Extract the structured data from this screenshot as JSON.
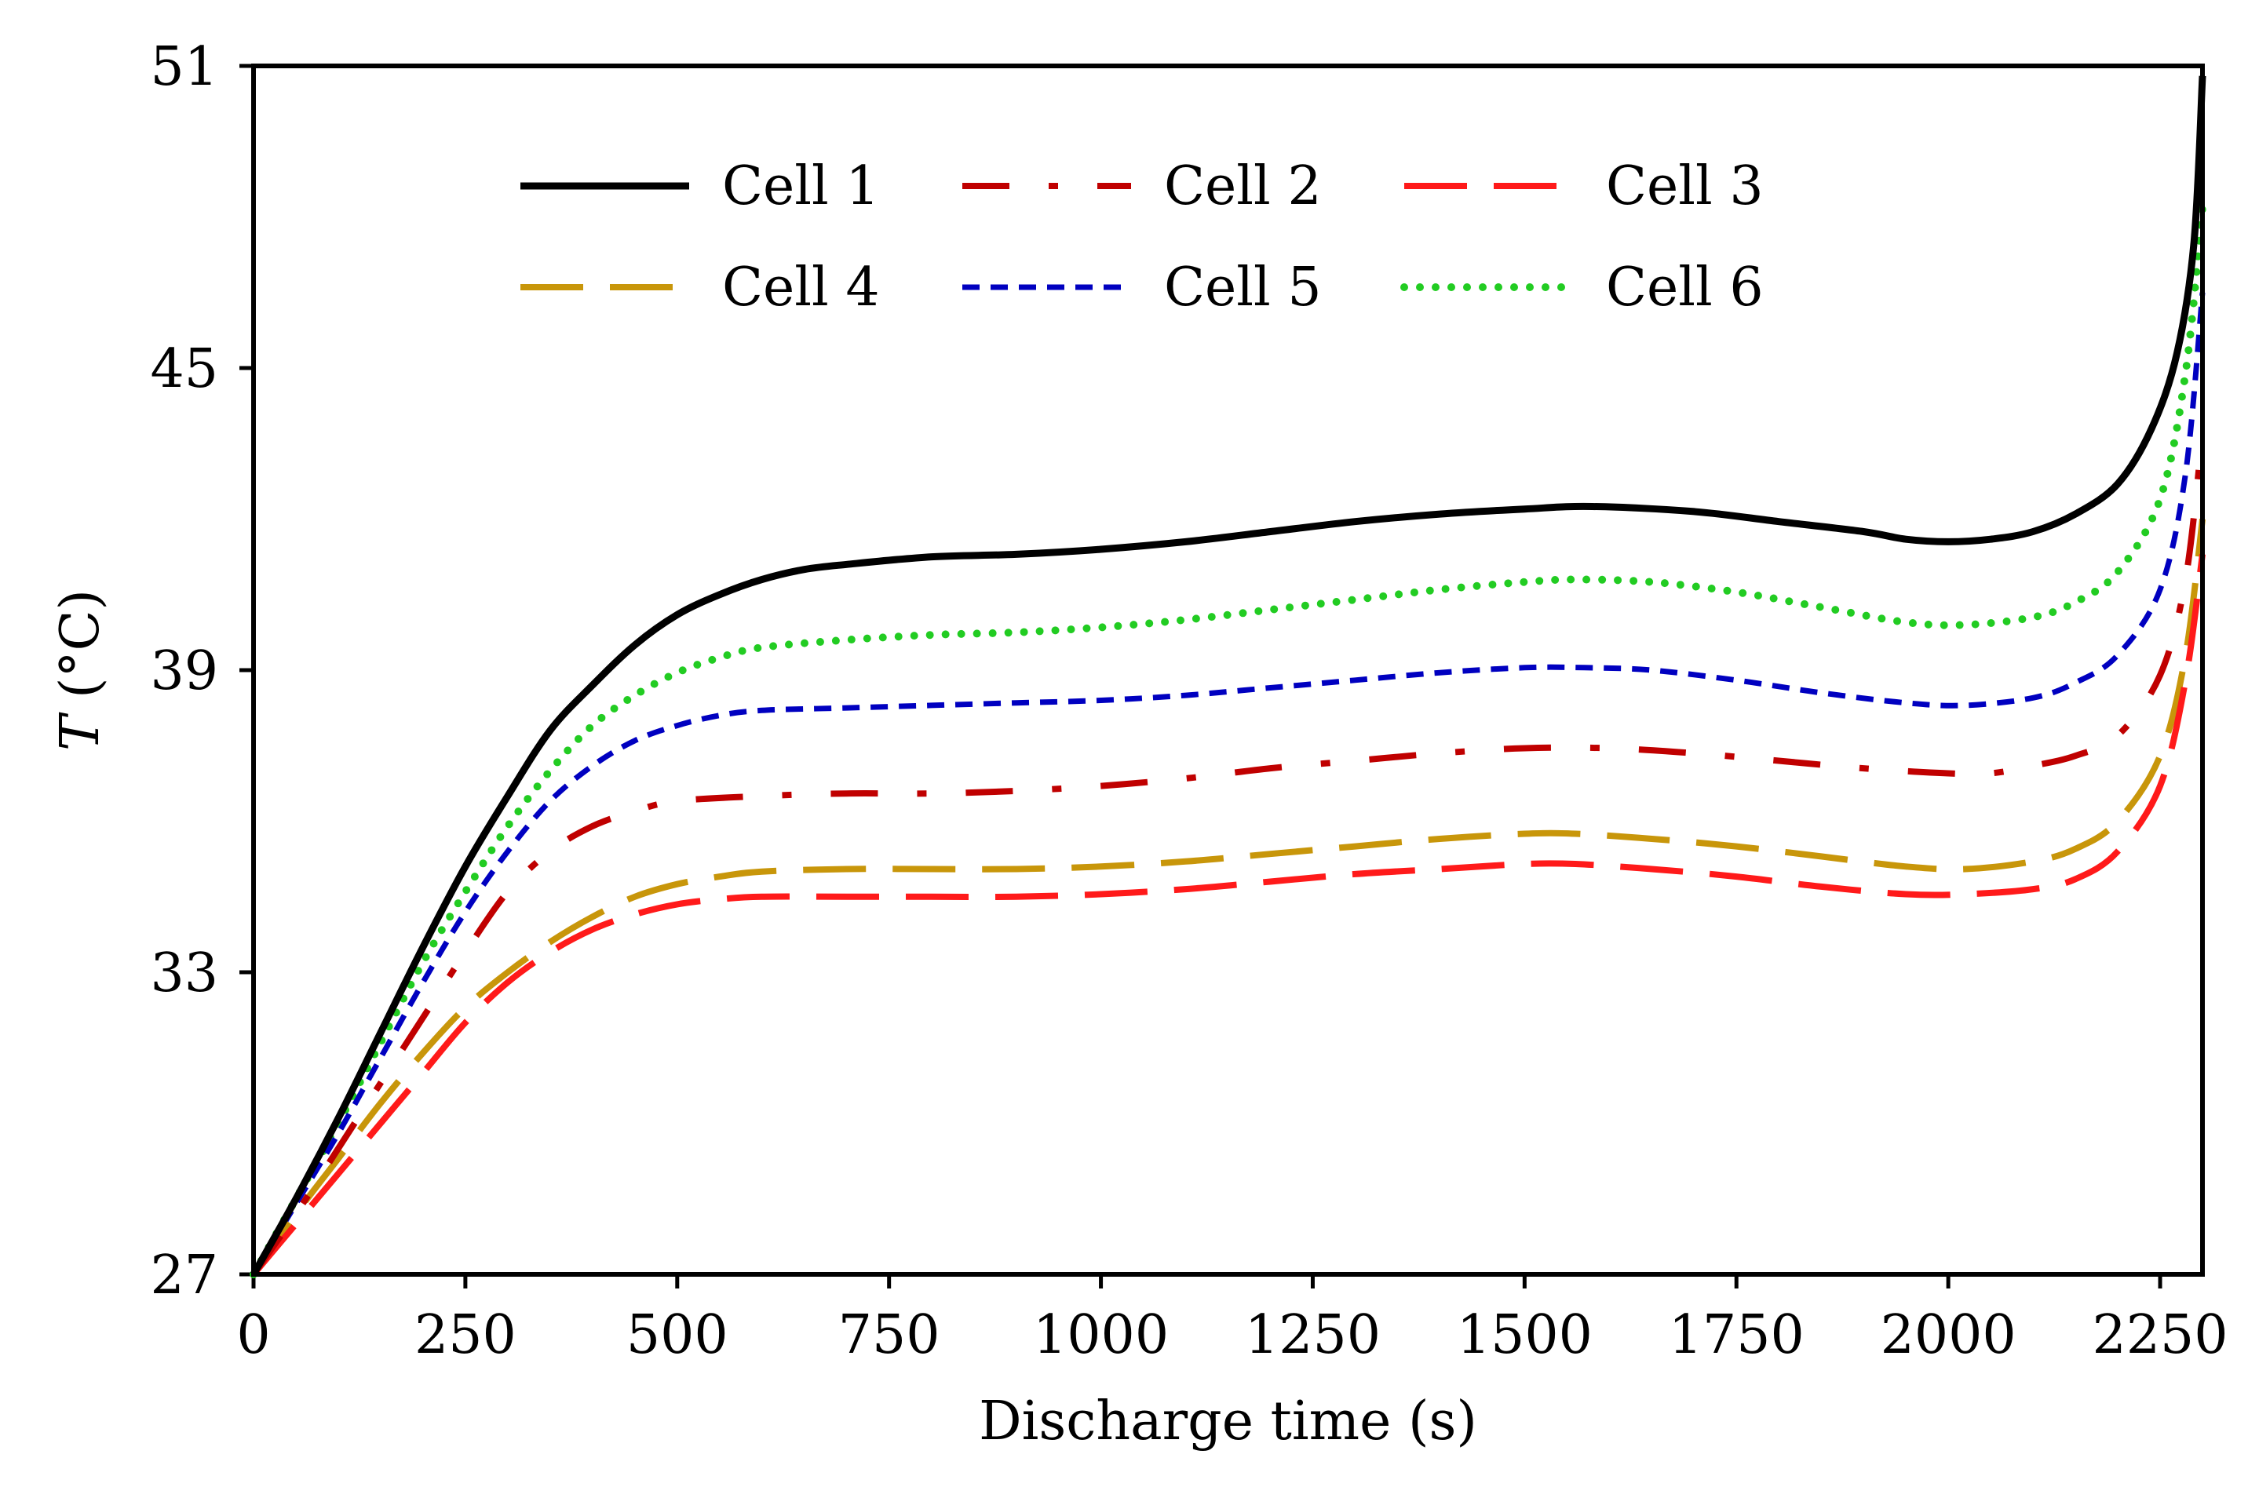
{
  "chart_data": {
    "type": "line",
    "title": "",
    "xlabel": "Discharge time (s)",
    "ylabel_italic": "T",
    "ylabel_unit": " (°C)",
    "xlim": [
      0,
      2300
    ],
    "ylim": [
      27,
      51
    ],
    "xticks": [
      0,
      250,
      500,
      750,
      1000,
      1250,
      1500,
      1750,
      2000,
      2250
    ],
    "yticks": [
      27,
      33,
      39,
      45,
      51
    ],
    "legend_position": "top-left",
    "series": [
      {
        "name": "Cell 1",
        "color": "#000000",
        "style": "solid",
        "points": [
          [
            0,
            27
          ],
          [
            50,
            28.5
          ],
          [
            100,
            30.1
          ],
          [
            150,
            31.8
          ],
          [
            200,
            33.5
          ],
          [
            250,
            35.1
          ],
          [
            300,
            36.5
          ],
          [
            350,
            37.8
          ],
          [
            400,
            38.7
          ],
          [
            450,
            39.5
          ],
          [
            500,
            40.1
          ],
          [
            550,
            40.5
          ],
          [
            600,
            40.8
          ],
          [
            650,
            41.0
          ],
          [
            700,
            41.1
          ],
          [
            800,
            41.25
          ],
          [
            900,
            41.3
          ],
          [
            1000,
            41.4
          ],
          [
            1100,
            41.55
          ],
          [
            1200,
            41.75
          ],
          [
            1300,
            41.95
          ],
          [
            1400,
            42.1
          ],
          [
            1500,
            42.2
          ],
          [
            1580,
            42.25
          ],
          [
            1700,
            42.15
          ],
          [
            1800,
            41.95
          ],
          [
            1900,
            41.75
          ],
          [
            1950,
            41.6
          ],
          [
            2000,
            41.55
          ],
          [
            2050,
            41.6
          ],
          [
            2100,
            41.75
          ],
          [
            2150,
            42.1
          ],
          [
            2200,
            42.7
          ],
          [
            2240,
            43.8
          ],
          [
            2270,
            45.3
          ],
          [
            2290,
            47.5
          ],
          [
            2300,
            50.8
          ]
        ]
      },
      {
        "name": "Cell 2",
        "color": "#c00000",
        "style": "dash-dot",
        "points": [
          [
            0,
            27
          ],
          [
            50,
            28.2
          ],
          [
            100,
            29.5
          ],
          [
            150,
            30.8
          ],
          [
            200,
            32.1
          ],
          [
            250,
            33.4
          ],
          [
            300,
            34.6
          ],
          [
            350,
            35.4
          ],
          [
            400,
            35.9
          ],
          [
            450,
            36.2
          ],
          [
            500,
            36.4
          ],
          [
            600,
            36.5
          ],
          [
            700,
            36.55
          ],
          [
            800,
            36.55
          ],
          [
            900,
            36.6
          ],
          [
            1000,
            36.7
          ],
          [
            1100,
            36.85
          ],
          [
            1200,
            37.05
          ],
          [
            1300,
            37.2
          ],
          [
            1400,
            37.35
          ],
          [
            1500,
            37.45
          ],
          [
            1600,
            37.45
          ],
          [
            1700,
            37.35
          ],
          [
            1800,
            37.2
          ],
          [
            1900,
            37.05
          ],
          [
            2000,
            36.95
          ],
          [
            2050,
            36.95
          ],
          [
            2100,
            37.1
          ],
          [
            2150,
            37.3
          ],
          [
            2200,
            37.7
          ],
          [
            2250,
            38.9
          ],
          [
            2280,
            40.8
          ],
          [
            2300,
            43.7
          ]
        ]
      },
      {
        "name": "Cell 3",
        "color": "#ff1a1a",
        "style": "long-dash",
        "points": [
          [
            0,
            27
          ],
          [
            50,
            28.0
          ],
          [
            100,
            29.0
          ],
          [
            150,
            30.0
          ],
          [
            200,
            31.0
          ],
          [
            250,
            32.0
          ],
          [
            300,
            32.8
          ],
          [
            350,
            33.4
          ],
          [
            400,
            33.85
          ],
          [
            450,
            34.15
          ],
          [
            500,
            34.35
          ],
          [
            550,
            34.45
          ],
          [
            600,
            34.5
          ],
          [
            700,
            34.5
          ],
          [
            800,
            34.5
          ],
          [
            900,
            34.5
          ],
          [
            1000,
            34.55
          ],
          [
            1100,
            34.65
          ],
          [
            1200,
            34.8
          ],
          [
            1300,
            34.95
          ],
          [
            1400,
            35.05
          ],
          [
            1500,
            35.15
          ],
          [
            1560,
            35.15
          ],
          [
            1650,
            35.05
          ],
          [
            1750,
            34.9
          ],
          [
            1850,
            34.7
          ],
          [
            1950,
            34.55
          ],
          [
            2020,
            34.55
          ],
          [
            2100,
            34.65
          ],
          [
            2150,
            34.85
          ],
          [
            2200,
            35.4
          ],
          [
            2250,
            36.7
          ],
          [
            2280,
            38.8
          ],
          [
            2300,
            41.3
          ]
        ]
      },
      {
        "name": "Cell 4",
        "color": "#c8960a",
        "style": "long-dash",
        "points": [
          [
            0,
            27
          ],
          [
            50,
            28.2
          ],
          [
            100,
            29.3
          ],
          [
            150,
            30.4
          ],
          [
            200,
            31.4
          ],
          [
            250,
            32.3
          ],
          [
            300,
            33.0
          ],
          [
            350,
            33.6
          ],
          [
            400,
            34.1
          ],
          [
            450,
            34.5
          ],
          [
            500,
            34.75
          ],
          [
            550,
            34.9
          ],
          [
            600,
            35.0
          ],
          [
            700,
            35.05
          ],
          [
            800,
            35.05
          ],
          [
            900,
            35.05
          ],
          [
            1000,
            35.1
          ],
          [
            1100,
            35.2
          ],
          [
            1200,
            35.35
          ],
          [
            1300,
            35.5
          ],
          [
            1400,
            35.65
          ],
          [
            1500,
            35.75
          ],
          [
            1560,
            35.75
          ],
          [
            1650,
            35.65
          ],
          [
            1750,
            35.5
          ],
          [
            1850,
            35.3
          ],
          [
            1950,
            35.1
          ],
          [
            2020,
            35.05
          ],
          [
            2100,
            35.2
          ],
          [
            2150,
            35.45
          ],
          [
            2200,
            36.0
          ],
          [
            2250,
            37.3
          ],
          [
            2280,
            39.3
          ],
          [
            2300,
            42.0
          ]
        ]
      },
      {
        "name": "Cell 5",
        "color": "#0000c0",
        "style": "short-dash",
        "points": [
          [
            0,
            27
          ],
          [
            50,
            28.4
          ],
          [
            100,
            29.8
          ],
          [
            150,
            31.3
          ],
          [
            200,
            32.8
          ],
          [
            250,
            34.2
          ],
          [
            300,
            35.4
          ],
          [
            350,
            36.4
          ],
          [
            400,
            37.1
          ],
          [
            450,
            37.6
          ],
          [
            500,
            37.9
          ],
          [
            550,
            38.1
          ],
          [
            600,
            38.2
          ],
          [
            700,
            38.25
          ],
          [
            800,
            38.3
          ],
          [
            900,
            38.35
          ],
          [
            1000,
            38.4
          ],
          [
            1100,
            38.5
          ],
          [
            1200,
            38.65
          ],
          [
            1300,
            38.8
          ],
          [
            1400,
            38.95
          ],
          [
            1500,
            39.05
          ],
          [
            1570,
            39.05
          ],
          [
            1650,
            39.0
          ],
          [
            1750,
            38.8
          ],
          [
            1850,
            38.55
          ],
          [
            1950,
            38.35
          ],
          [
            2020,
            38.3
          ],
          [
            2100,
            38.45
          ],
          [
            2150,
            38.75
          ],
          [
            2200,
            39.3
          ],
          [
            2250,
            40.6
          ],
          [
            2280,
            42.9
          ],
          [
            2300,
            46.5
          ]
        ]
      },
      {
        "name": "Cell 6",
        "color": "#22cc22",
        "style": "dotted",
        "points": [
          [
            0,
            27
          ],
          [
            50,
            28.5
          ],
          [
            100,
            30.0
          ],
          [
            150,
            31.6
          ],
          [
            200,
            33.2
          ],
          [
            250,
            34.6
          ],
          [
            300,
            35.9
          ],
          [
            350,
            37.0
          ],
          [
            400,
            37.9
          ],
          [
            450,
            38.5
          ],
          [
            500,
            38.95
          ],
          [
            550,
            39.25
          ],
          [
            600,
            39.45
          ],
          [
            700,
            39.6
          ],
          [
            800,
            39.7
          ],
          [
            900,
            39.75
          ],
          [
            1000,
            39.85
          ],
          [
            1100,
            40.0
          ],
          [
            1200,
            40.2
          ],
          [
            1300,
            40.4
          ],
          [
            1400,
            40.6
          ],
          [
            1500,
            40.75
          ],
          [
            1560,
            40.8
          ],
          [
            1650,
            40.75
          ],
          [
            1750,
            40.55
          ],
          [
            1850,
            40.25
          ],
          [
            1950,
            39.95
          ],
          [
            2020,
            39.9
          ],
          [
            2100,
            40.05
          ],
          [
            2150,
            40.35
          ],
          [
            2200,
            40.95
          ],
          [
            2250,
            42.4
          ],
          [
            2280,
            44.9
          ],
          [
            2300,
            48.2
          ]
        ]
      }
    ]
  }
}
